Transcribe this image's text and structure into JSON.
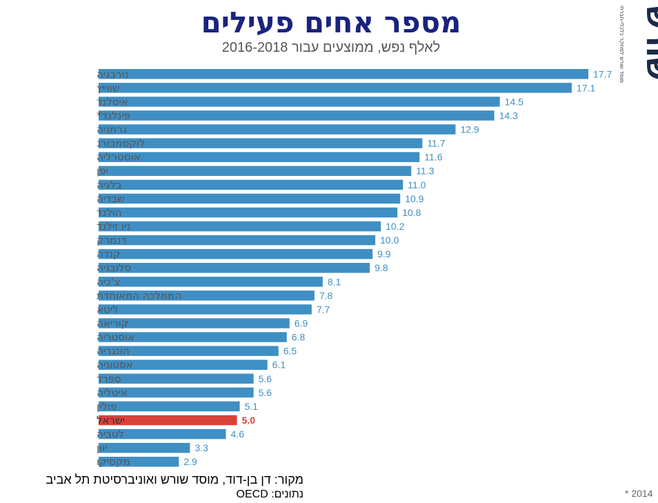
{
  "chart_data": {
    "type": "bar",
    "orientation": "horizontal",
    "title": "מספר אחים פעילים",
    "subtitle": "לאלף נפש, ממוצעים עבור 2016-2018",
    "categories": [
      "נורבגיה",
      "שווייץ",
      "איסלנד",
      "פינלנד*",
      "גרמניה",
      "לוקסמבורג",
      "אוסטרליה",
      "יפן",
      "בלגיה",
      "שבדיה",
      "הולנד",
      "ניו זילנד",
      "דנמרק",
      "קנדה",
      "סלובניה",
      "צ'כיה",
      "הממלכה המאוחדת",
      "ליטא",
      "קוריאה",
      "אוסטריה",
      "הונגריה",
      "אסטוניה",
      "ספרד",
      "איטליה",
      "פולין",
      "ישראל",
      "לטביה",
      "יוון",
      "מקסיקו"
    ],
    "values": [
      17.7,
      17.1,
      14.5,
      14.3,
      12.9,
      11.7,
      11.6,
      11.3,
      11.0,
      10.9,
      10.8,
      10.2,
      10.0,
      9.9,
      9.8,
      8.1,
      7.8,
      7.7,
      6.9,
      6.8,
      6.5,
      6.1,
      5.6,
      5.6,
      5.1,
      5.0,
      4.6,
      3.3,
      2.9
    ],
    "value_labels": [
      "17.7",
      "17.1",
      "14.5",
      "14.3",
      "12.9",
      "11.7",
      "11.6",
      "11.3",
      "11.0",
      "10.9",
      "10.8",
      "10.2",
      "10.0",
      "9.9",
      "9.8",
      "8.1",
      "7.8",
      "7.7",
      "6.9",
      "6.8",
      "6.5",
      "6.1",
      "5.6",
      "5.6",
      "5.1",
      "5.0",
      "4.6",
      "3.3",
      "2.9"
    ],
    "highlight_category": "ישראל",
    "colors": {
      "bar": "#3f8fc4",
      "highlight": "#d9423a",
      "label": "#3f8fc4",
      "category_text": "#555555"
    },
    "xlim": [
      0,
      17.7
    ],
    "grid": false
  },
  "texts": {
    "source": "מקור:  דן בן-דוד, מוסד שורש ואוניברסיטת תל אביב",
    "data_note": "נתונים: OECD",
    "footnote": "* 2014",
    "logo": "שורש",
    "tagline": "מוסד שורש למחקר כלכלי-חברתי"
  }
}
